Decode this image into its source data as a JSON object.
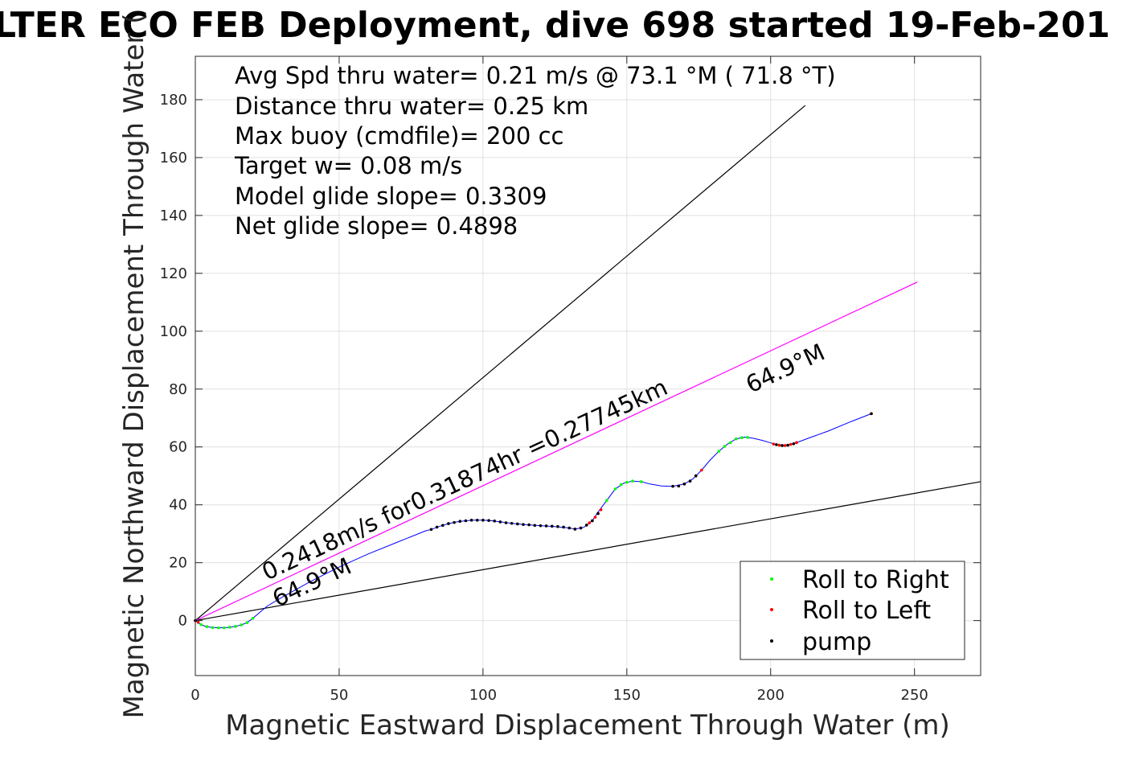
{
  "chart_data": {
    "type": "scatter",
    "title": "LTER ECO FEB Deployment, dive 698 started 19-Feb-201",
    "xlabel": "Magnetic Eastward Displacement Through Water (m)",
    "ylabel": "Magnetic Northward Displacement Through Water (",
    "xlim": [
      0,
      273
    ],
    "ylim": [
      -19,
      195
    ],
    "xticks": [
      0,
      50,
      100,
      150,
      200,
      250
    ],
    "yticks": [
      0,
      20,
      40,
      60,
      80,
      100,
      120,
      140,
      160,
      180
    ],
    "grid": true,
    "legend_position": "bottom-right",
    "annotations": [
      "Avg Spd thru water=  0.21 m/s @  73.1 °M ( 71.8 °T)",
      "Distance thru water=  0.25 km",
      "Max buoy (cmdfile)= 200 cc",
      "Target w= 0.08 m/s",
      "Model glide slope= 0.3309",
      "Net glide slope= 0.4898"
    ],
    "rotated_labels": {
      "speed": "0.2418m/s for0.31874hr =0.27745km",
      "heading_top": "64.9°M",
      "heading_bottom": "64.9°M"
    },
    "lines": [
      {
        "name": "upper-bound",
        "color": "#000000",
        "points": [
          [
            0,
            0
          ],
          [
            212,
            178
          ]
        ]
      },
      {
        "name": "lower-bound",
        "color": "#000000",
        "points": [
          [
            0,
            0
          ],
          [
            273,
            48
          ]
        ]
      },
      {
        "name": "heading-line",
        "color": "#ff00ff",
        "points": [
          [
            0,
            0
          ],
          [
            251,
            117
          ]
        ]
      }
    ],
    "track": {
      "color": "#0000ff",
      "points": [
        [
          0,
          0
        ],
        [
          1,
          -0.8
        ],
        [
          2,
          -1.4
        ],
        [
          3,
          -1.8
        ],
        [
          4,
          -2.1
        ],
        [
          6,
          -2.4
        ],
        [
          8,
          -2.5
        ],
        [
          10,
          -2.5
        ],
        [
          12,
          -2.3
        ],
        [
          14,
          -2.0
        ],
        [
          16,
          -1.5
        ],
        [
          18,
          -0.7
        ],
        [
          20,
          0.8
        ],
        [
          22,
          2.5
        ],
        [
          25,
          5.0
        ],
        [
          30,
          8.0
        ],
        [
          40,
          13.5
        ],
        [
          50,
          18.5
        ],
        [
          60,
          23.0
        ],
        [
          70,
          27.0
        ],
        [
          80,
          31.0
        ],
        [
          82,
          31.5
        ],
        [
          85,
          32.6
        ],
        [
          88,
          33.5
        ],
        [
          91,
          34.1
        ],
        [
          94,
          34.5
        ],
        [
          97,
          34.7
        ],
        [
          100,
          34.7
        ],
        [
          103,
          34.5
        ],
        [
          106,
          34.1
        ],
        [
          110,
          33.6
        ],
        [
          115,
          33.1
        ],
        [
          120,
          32.8
        ],
        [
          125,
          32.5
        ],
        [
          130,
          32.0
        ],
        [
          132,
          31.6
        ],
        [
          135,
          32.2
        ],
        [
          138,
          34.5
        ],
        [
          140,
          37.5
        ],
        [
          143,
          41.5
        ],
        [
          146,
          45.5
        ],
        [
          149,
          47.5
        ],
        [
          152,
          48.2
        ],
        [
          155,
          48.0
        ],
        [
          158,
          47.2
        ],
        [
          162,
          46.5
        ],
        [
          166,
          46.4
        ],
        [
          170,
          47.2
        ],
        [
          173,
          49.0
        ],
        [
          176,
          52.0
        ],
        [
          179,
          55.5
        ],
        [
          182,
          58.5
        ],
        [
          185,
          61.0
        ],
        [
          188,
          62.8
        ],
        [
          191,
          63.4
        ],
        [
          194,
          63.0
        ],
        [
          197,
          62.3
        ],
        [
          200,
          61.4
        ],
        [
          203,
          60.6
        ],
        [
          206,
          60.6
        ],
        [
          209,
          61.5
        ],
        [
          213,
          63.0
        ],
        [
          220,
          65.5
        ],
        [
          228,
          68.8
        ],
        [
          235,
          71.5
        ]
      ]
    },
    "series": [
      {
        "name": "Roll to Right",
        "color": "#00ff00",
        "points": [
          [
            2,
            -1.4
          ],
          [
            4,
            -2.1
          ],
          [
            6,
            -2.4
          ],
          [
            8,
            -2.5
          ],
          [
            10,
            -2.5
          ],
          [
            12,
            -2.3
          ],
          [
            14,
            -2.0
          ],
          [
            16,
            -1.5
          ],
          [
            18,
            -0.7
          ],
          [
            20,
            0.8
          ],
          [
            143,
            41.5
          ],
          [
            146,
            45.5
          ],
          [
            148,
            47.0
          ],
          [
            150,
            47.8
          ],
          [
            152,
            48.2
          ],
          [
            155,
            48.0
          ],
          [
            182,
            58.5
          ],
          [
            184,
            60.2
          ],
          [
            186,
            61.5
          ],
          [
            188,
            62.8
          ],
          [
            190,
            63.2
          ],
          [
            192,
            63.3
          ]
        ]
      },
      {
        "name": "Roll to Left",
        "color": "#ff0000",
        "points": [
          [
            0,
            0
          ],
          [
            1,
            -0.6
          ],
          [
            132,
            31.6
          ],
          [
            134,
            32.0
          ],
          [
            136,
            33.0
          ],
          [
            137,
            33.8
          ],
          [
            138,
            34.5
          ],
          [
            139,
            35.7
          ],
          [
            140,
            37.0
          ],
          [
            141,
            38.3
          ],
          [
            166,
            46.4
          ],
          [
            168,
            46.5
          ],
          [
            170,
            47.2
          ],
          [
            172,
            48.2
          ],
          [
            174,
            50.0
          ],
          [
            176,
            52.0
          ],
          [
            201,
            61.0
          ],
          [
            203,
            60.6
          ],
          [
            205,
            60.5
          ],
          [
            207,
            60.9
          ],
          [
            209,
            61.5
          ],
          [
            235,
            71.5
          ]
        ]
      },
      {
        "name": "pump",
        "color": "#000000",
        "points": [
          [
            0,
            0
          ],
          [
            82,
            31.5
          ],
          [
            84,
            32.3
          ],
          [
            86,
            32.9
          ],
          [
            88,
            33.5
          ],
          [
            90,
            33.9
          ],
          [
            92,
            34.3
          ],
          [
            94,
            34.5
          ],
          [
            96,
            34.7
          ],
          [
            98,
            34.7
          ],
          [
            100,
            34.7
          ],
          [
            102,
            34.6
          ],
          [
            104,
            34.4
          ],
          [
            106,
            34.1
          ],
          [
            108,
            33.8
          ],
          [
            110,
            33.6
          ],
          [
            112,
            33.4
          ],
          [
            114,
            33.2
          ],
          [
            116,
            33.1
          ],
          [
            118,
            32.9
          ],
          [
            120,
            32.8
          ],
          [
            122,
            32.7
          ],
          [
            124,
            32.6
          ],
          [
            126,
            32.5
          ],
          [
            128,
            32.3
          ],
          [
            130,
            32.0
          ],
          [
            132,
            31.6
          ],
          [
            134,
            32.0
          ],
          [
            136,
            33.0
          ],
          [
            138,
            34.5
          ],
          [
            140,
            37.0
          ],
          [
            166,
            46.4
          ],
          [
            168,
            46.5
          ],
          [
            170,
            47.2
          ],
          [
            172,
            48.2
          ],
          [
            174,
            50.0
          ],
          [
            202,
            60.8
          ],
          [
            204,
            60.5
          ],
          [
            206,
            60.6
          ],
          [
            208,
            61.1
          ],
          [
            235,
            71.5
          ]
        ]
      }
    ]
  }
}
